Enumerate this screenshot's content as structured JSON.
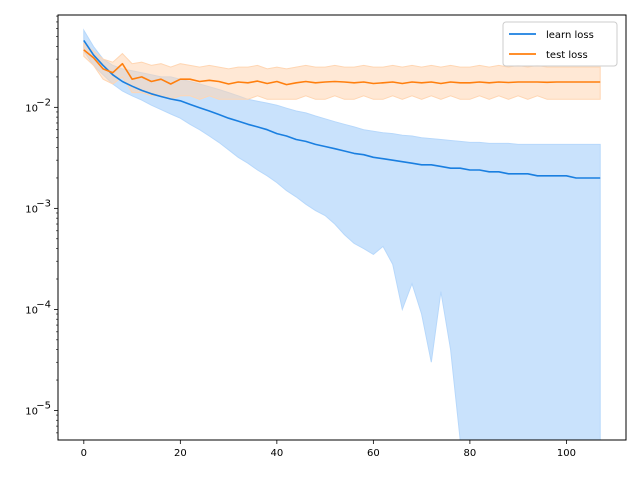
{
  "chart_data": {
    "type": "line",
    "title": "",
    "xlabel": "",
    "ylabel": "",
    "xlim": [
      -5.35,
      112.35
    ],
    "ylim": [
      5.1e-06,
      0.082
    ],
    "yscale": "log",
    "grid": false,
    "legend_position": "top-right",
    "x_ticks": [
      0,
      20,
      40,
      60,
      80,
      100
    ],
    "y_ticks": [
      1e-05,
      0.0001,
      0.001,
      0.01
    ],
    "y_tick_labels": [
      {
        "base": "10",
        "exp": "−5"
      },
      {
        "base": "10",
        "exp": "−4"
      },
      {
        "base": "10",
        "exp": "−3"
      },
      {
        "base": "10",
        "exp": "−2"
      }
    ],
    "x": [
      0,
      2,
      4,
      6,
      8,
      10,
      12,
      14,
      16,
      18,
      20,
      22,
      24,
      26,
      28,
      30,
      32,
      34,
      36,
      38,
      40,
      42,
      44,
      46,
      48,
      50,
      52,
      54,
      56,
      58,
      60,
      62,
      64,
      66,
      68,
      70,
      72,
      74,
      76,
      78,
      80,
      82,
      84,
      86,
      88,
      90,
      92,
      94,
      96,
      98,
      100,
      102,
      104,
      106,
      107
    ],
    "series": [
      {
        "name": "learn loss",
        "color": "#1f77b4",
        "line_color": "#1a7fe0",
        "fill_color": "#b7d8fb",
        "values": [
          0.046,
          0.033,
          0.026,
          0.021,
          0.018,
          0.0162,
          0.0147,
          0.0136,
          0.0128,
          0.0121,
          0.0116,
          0.0107,
          0.0099,
          0.0092,
          0.0085,
          0.0078,
          0.0073,
          0.0068,
          0.0064,
          0.006,
          0.0055,
          0.0052,
          0.0048,
          0.0046,
          0.0043,
          0.0041,
          0.0039,
          0.0037,
          0.0035,
          0.0034,
          0.0032,
          0.0031,
          0.003,
          0.0029,
          0.0028,
          0.0027,
          0.0027,
          0.0026,
          0.0025,
          0.0025,
          0.0024,
          0.0024,
          0.0023,
          0.0023,
          0.0022,
          0.0022,
          0.0022,
          0.0021,
          0.0021,
          0.0021,
          0.0021,
          0.002,
          0.002,
          0.002,
          0.002
        ],
        "upper": [
          0.058,
          0.04,
          0.03,
          0.026,
          0.024,
          0.023,
          0.022,
          0.021,
          0.02,
          0.02,
          0.019,
          0.018,
          0.017,
          0.016,
          0.015,
          0.014,
          0.013,
          0.012,
          0.0115,
          0.011,
          0.0105,
          0.0098,
          0.0092,
          0.0088,
          0.0082,
          0.0077,
          0.0072,
          0.0068,
          0.0064,
          0.006,
          0.0058,
          0.0056,
          0.0055,
          0.0053,
          0.0052,
          0.005,
          0.0049,
          0.0048,
          0.0047,
          0.0046,
          0.0045,
          0.0045,
          0.0044,
          0.0044,
          0.0044,
          0.0043,
          0.0043,
          0.0043,
          0.0043,
          0.0043,
          0.0043,
          0.0043,
          0.0043,
          0.0043,
          0.0043
        ],
        "lower": [
          0.036,
          0.026,
          0.021,
          0.017,
          0.0145,
          0.013,
          0.0118,
          0.0105,
          0.0095,
          0.0086,
          0.0078,
          0.0068,
          0.006,
          0.0052,
          0.0045,
          0.0038,
          0.0032,
          0.0028,
          0.0024,
          0.0021,
          0.0018,
          0.0015,
          0.0013,
          0.0011,
          0.00095,
          0.00085,
          0.0007,
          0.00055,
          0.00045,
          0.0004,
          0.00035,
          0.00042,
          0.00028,
          0.0001,
          0.00018,
          9e-05,
          3e-05,
          0.00015,
          4e-05,
          5e-06,
          5e-06,
          5e-06,
          5e-06,
          5e-06,
          5e-06,
          5e-06,
          5e-06,
          5e-06,
          5e-06,
          5e-06,
          5e-06,
          5e-06,
          5e-06,
          5e-06,
          5e-06
        ]
      },
      {
        "name": "test loss",
        "color": "#ff7f0e",
        "line_color": "#ff7f0e",
        "fill_color": "#ffd6b3",
        "values": [
          0.037,
          0.031,
          0.024,
          0.022,
          0.027,
          0.019,
          0.02,
          0.018,
          0.019,
          0.017,
          0.019,
          0.019,
          0.018,
          0.0185,
          0.018,
          0.017,
          0.0178,
          0.0175,
          0.0182,
          0.0172,
          0.018,
          0.0168,
          0.0175,
          0.018,
          0.0175,
          0.0178,
          0.018,
          0.0178,
          0.0175,
          0.0178,
          0.0172,
          0.0175,
          0.0178,
          0.0172,
          0.0178,
          0.0175,
          0.0178,
          0.0172,
          0.0178,
          0.0175,
          0.0175,
          0.0178,
          0.0175,
          0.0178,
          0.0176,
          0.0178,
          0.0178,
          0.0178,
          0.0177,
          0.0178,
          0.0178,
          0.0178,
          0.0178,
          0.0178,
          0.0178
        ],
        "upper": [
          0.043,
          0.036,
          0.03,
          0.028,
          0.034,
          0.027,
          0.028,
          0.026,
          0.027,
          0.025,
          0.027,
          0.026,
          0.025,
          0.026,
          0.025,
          0.024,
          0.025,
          0.025,
          0.026,
          0.024,
          0.025,
          0.024,
          0.025,
          0.026,
          0.025,
          0.025,
          0.026,
          0.025,
          0.025,
          0.026,
          0.025,
          0.025,
          0.026,
          0.025,
          0.026,
          0.025,
          0.026,
          0.025,
          0.026,
          0.025,
          0.025,
          0.026,
          0.025,
          0.026,
          0.025,
          0.026,
          0.025,
          0.026,
          0.025,
          0.025,
          0.025,
          0.025,
          0.025,
          0.025,
          0.025
        ],
        "lower": [
          0.032,
          0.026,
          0.019,
          0.017,
          0.02,
          0.014,
          0.014,
          0.013,
          0.013,
          0.012,
          0.013,
          0.013,
          0.012,
          0.013,
          0.012,
          0.012,
          0.012,
          0.012,
          0.013,
          0.012,
          0.012,
          0.012,
          0.012,
          0.013,
          0.012,
          0.012,
          0.013,
          0.012,
          0.012,
          0.013,
          0.012,
          0.012,
          0.013,
          0.012,
          0.013,
          0.012,
          0.013,
          0.012,
          0.013,
          0.012,
          0.012,
          0.013,
          0.012,
          0.013,
          0.012,
          0.013,
          0.012,
          0.013,
          0.012,
          0.012,
          0.012,
          0.012,
          0.012,
          0.012,
          0.012
        ]
      }
    ]
  }
}
